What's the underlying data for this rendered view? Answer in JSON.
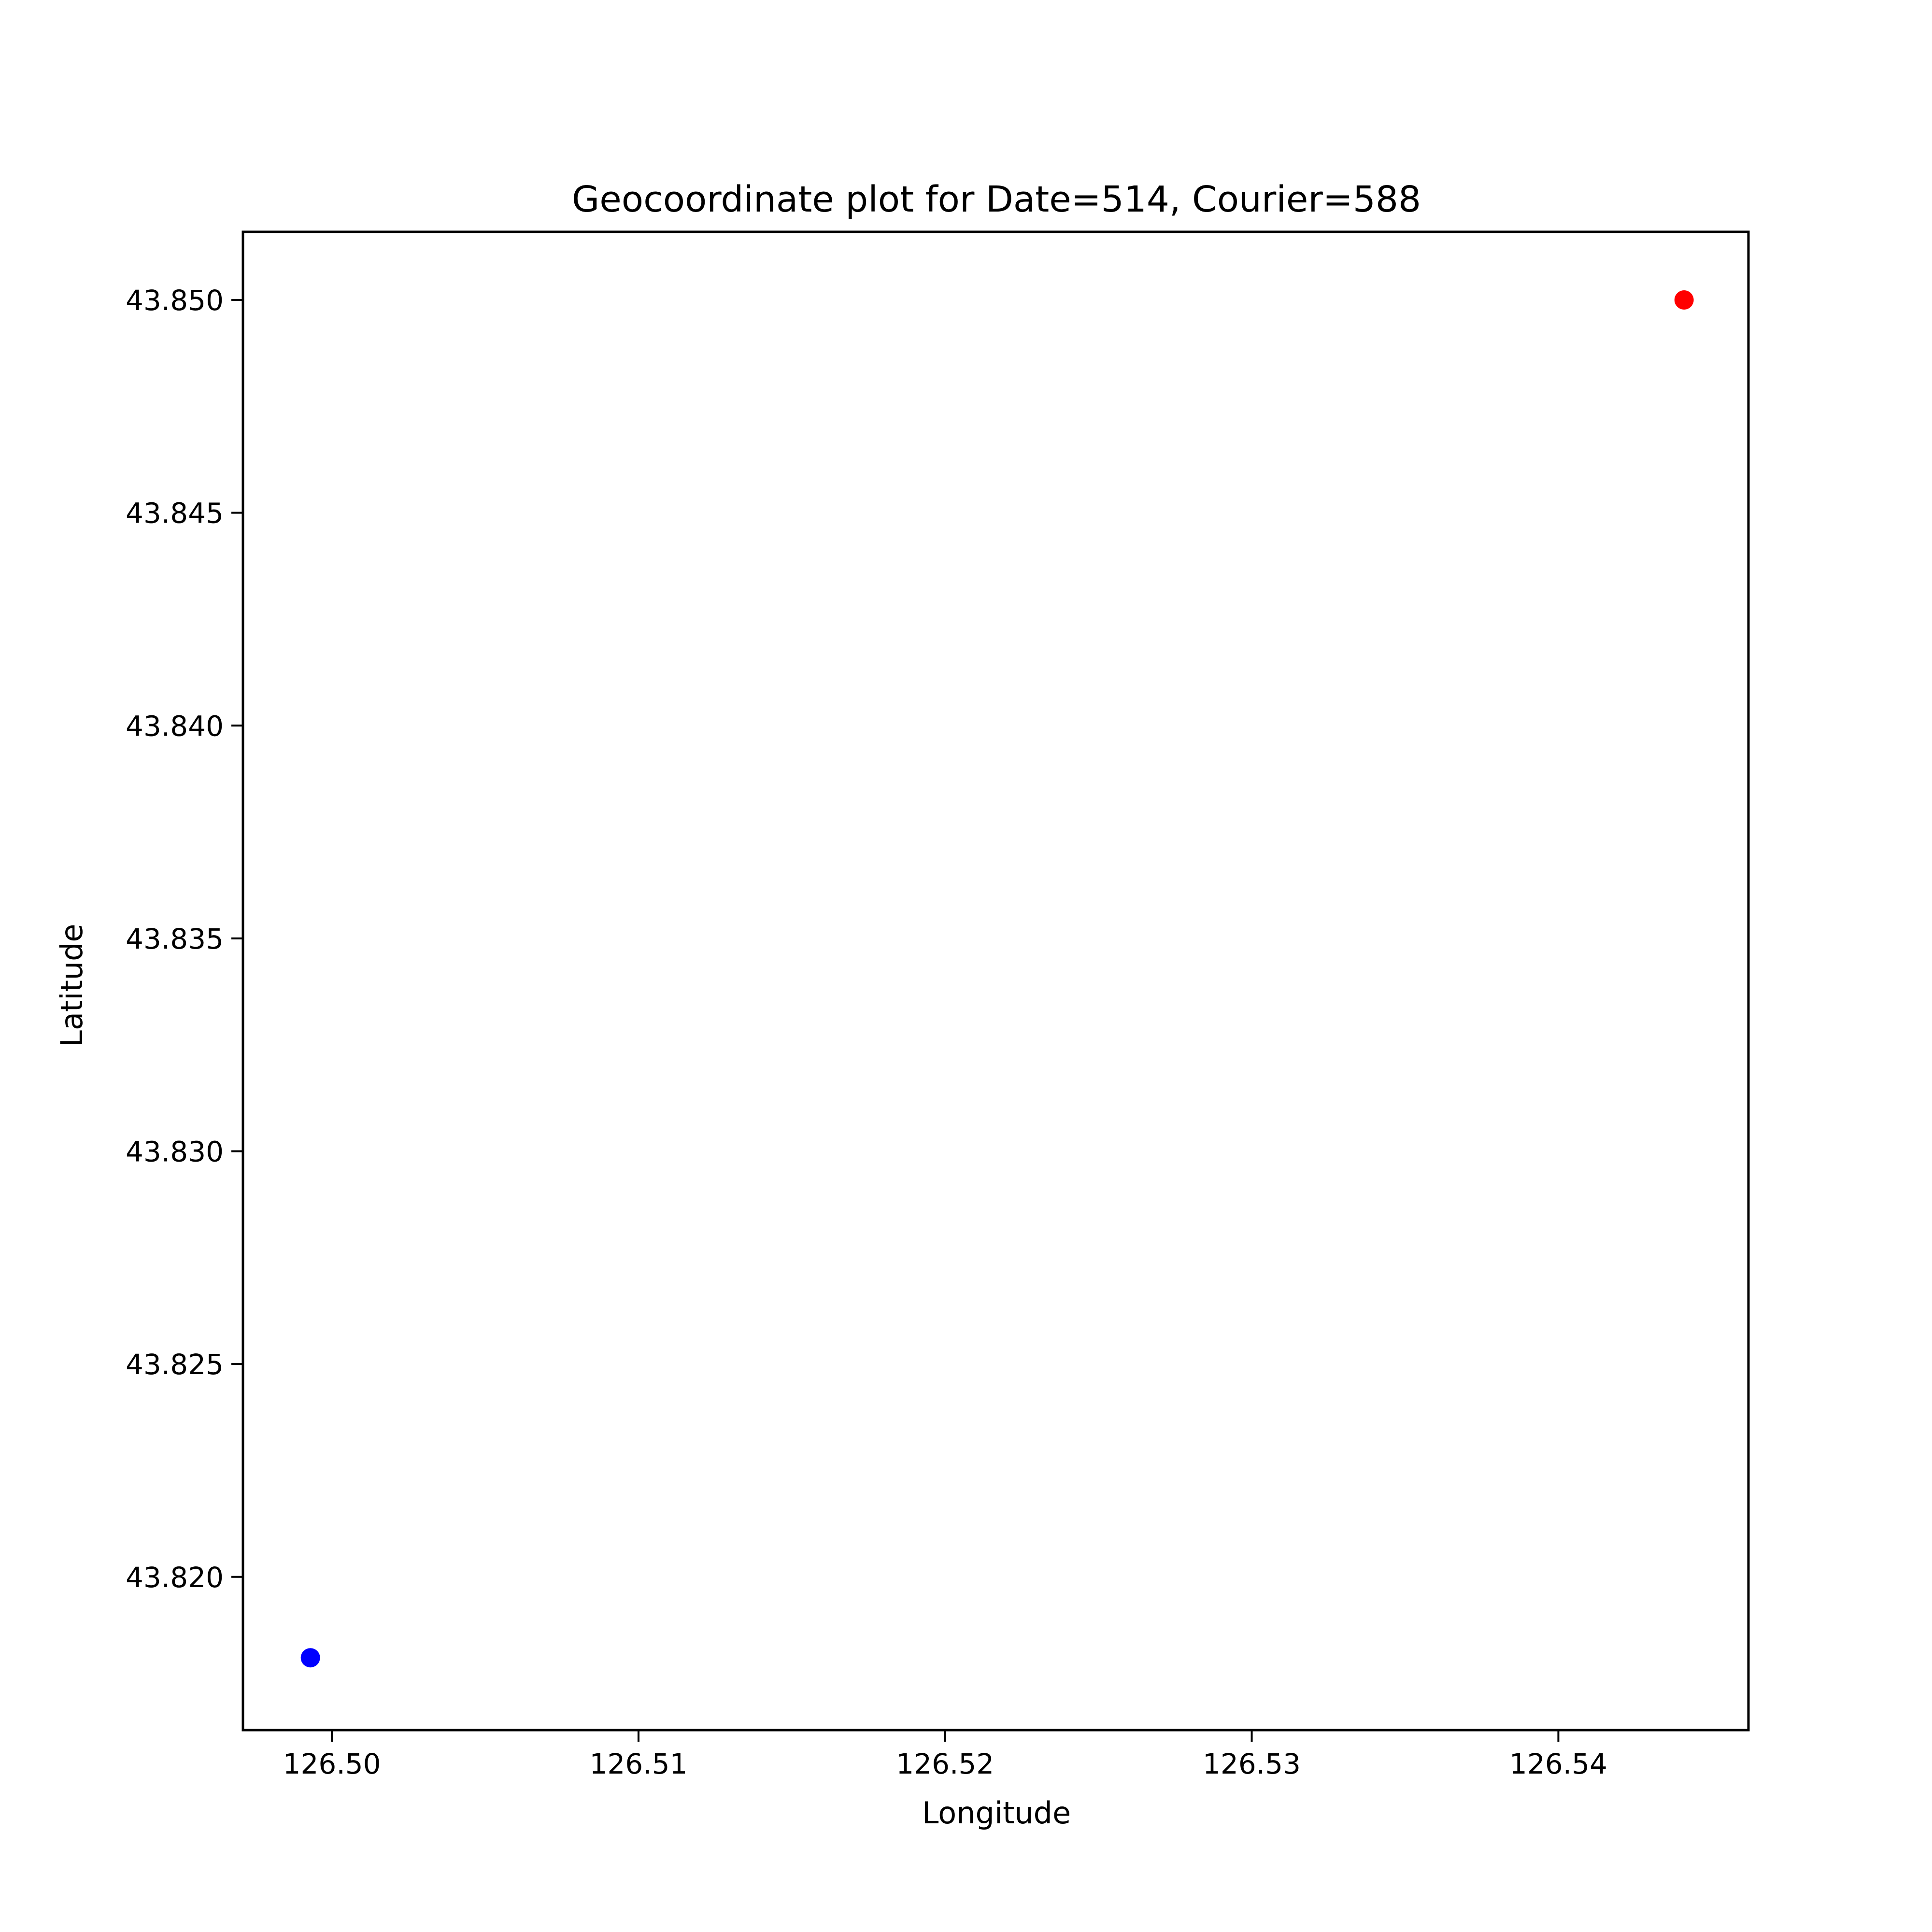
{
  "chart_data": {
    "type": "scatter",
    "title": "Geocoordinate plot for Date=514, Courier=588",
    "xlabel": "Longitude",
    "ylabel": "Latitude",
    "xlim": [
      126.4971,
      126.5462
    ],
    "ylim": [
      43.8164,
      43.8516
    ],
    "xticks": [
      126.5,
      126.51,
      126.52,
      126.53,
      126.54
    ],
    "xtick_labels": [
      "126.50",
      "126.51",
      "126.52",
      "126.53",
      "126.54"
    ],
    "yticks": [
      43.82,
      43.825,
      43.83,
      43.835,
      43.84,
      43.845,
      43.85
    ],
    "ytick_labels": [
      "43.820",
      "43.825",
      "43.830",
      "43.835",
      "43.840",
      "43.845",
      "43.850"
    ],
    "grid": false,
    "series": [
      {
        "x": [
          126.4993
        ],
        "y": [
          43.8181
        ],
        "color": "#0000ff"
      },
      {
        "x": [
          126.5441
        ],
        "y": [
          43.85
        ],
        "color": "#ff0000"
      }
    ]
  }
}
